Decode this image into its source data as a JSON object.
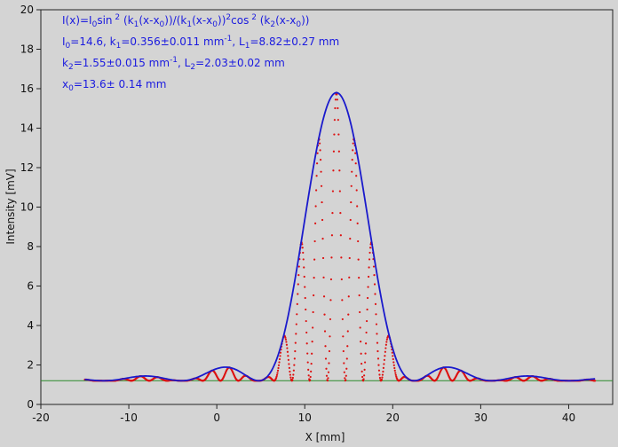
{
  "chart_data": {
    "type": "line",
    "title": "",
    "xlabel": "X [mm]",
    "ylabel": "Intensity [mV]",
    "xlim": [
      -20,
      45
    ],
    "ylim": [
      0,
      20
    ],
    "xticks": [
      -20,
      -10,
      0,
      10,
      20,
      30,
      40
    ],
    "yticks": [
      0,
      2,
      4,
      6,
      8,
      10,
      12,
      14,
      16,
      18,
      20
    ],
    "grid": false,
    "colors": {
      "fit": "#1a1acc",
      "measured": "#dd1111",
      "baseline": "#2a8a2a",
      "annotation": "#1a1adf",
      "plot_bg": "#d4d4d4"
    },
    "annotation": {
      "line1": {
        "a": "I(x)=I",
        "a_sub": "0",
        "b": "sin",
        "b_sup": " 2",
        "c": " (k",
        "c_sub": "1",
        "d": "(x-x",
        "d_sub": "0",
        "e": "))/(k",
        "e_sub": "1",
        "f": "(x-x",
        "f_sub": "0",
        "g": "))",
        "g_sup": "2",
        "h": "cos",
        "h_sup": " 2",
        "i": " (k",
        "i_sub": "2",
        "j": "(x-x",
        "j_sub": "0",
        "k": "))"
      },
      "line2": {
        "a": "I",
        "a_sub": "0",
        "b": "=14.6,  k",
        "b_sub": "1",
        "c": "=0.356±0.011 mm",
        "c_sup": "-1",
        "d": ",   L",
        "d_sub": "1",
        "e": "=8.82±0.27 mm"
      },
      "line3": {
        "a": "k",
        "a_sub": "2",
        "b": "=1.55±0.015 mm",
        "b_sup": "-1",
        "c": ",   L",
        "c_sub": "2",
        "d": "=2.03±0.02 mm"
      },
      "line4": {
        "a": "x",
        "a_sub": "0",
        "b": "=13.6±  0.14 mm"
      }
    },
    "baseline_y": 1.2,
    "model": {
      "I0": 14.6,
      "k1": 0.356,
      "k2": 1.55,
      "x0": 13.6,
      "fit_range": [
        -15,
        43
      ]
    },
    "measured_series": {
      "description": "dense scan (step 0.05 mm) following modulated cos² fringes, from -15 to 43",
      "x_range": [
        -15,
        43
      ],
      "step": 0.05
    }
  }
}
